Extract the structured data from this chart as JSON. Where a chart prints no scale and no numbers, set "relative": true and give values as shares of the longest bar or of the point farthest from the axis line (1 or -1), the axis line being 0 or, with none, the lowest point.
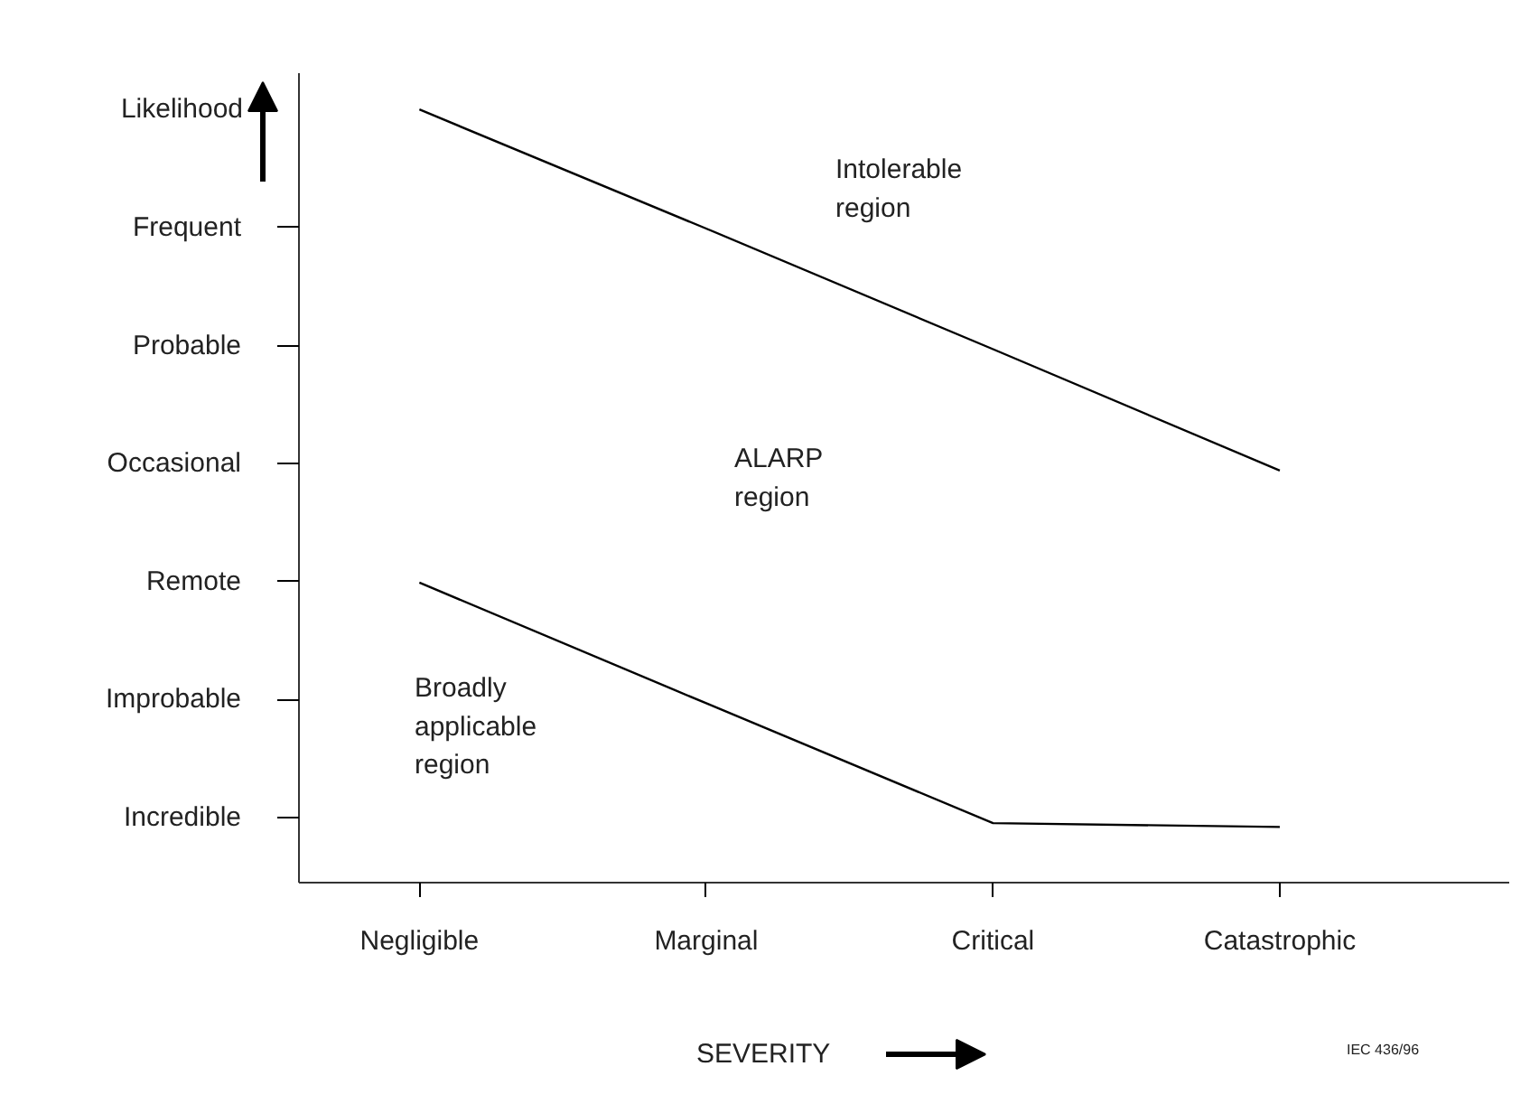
{
  "chart_data": {
    "type": "line",
    "xlabel": "SEVERITY",
    "ylabel": "Likelihood",
    "relative": true,
    "categories": [
      "Negligible",
      "Marginal",
      "Critical",
      "Catastrophic"
    ],
    "y_categories": [
      "Frequent",
      "Probable",
      "Occasional",
      "Remote",
      "Improbable",
      "Incredible"
    ],
    "series": [
      {
        "color": "#000000",
        "values": [
          1,
          0.846,
          0.69,
          0.533
        ]
      },
      {
        "color": "#000000",
        "values": [
          0.388,
          0.232,
          0.077,
          0.072
        ]
      }
    ],
    "annotations": [
      "Intolerable region",
      "ALARP region",
      "Broadly applicable region",
      "IEC 436/96"
    ],
    "grid": false,
    "marker": "none",
    "line_style": "solid"
  }
}
